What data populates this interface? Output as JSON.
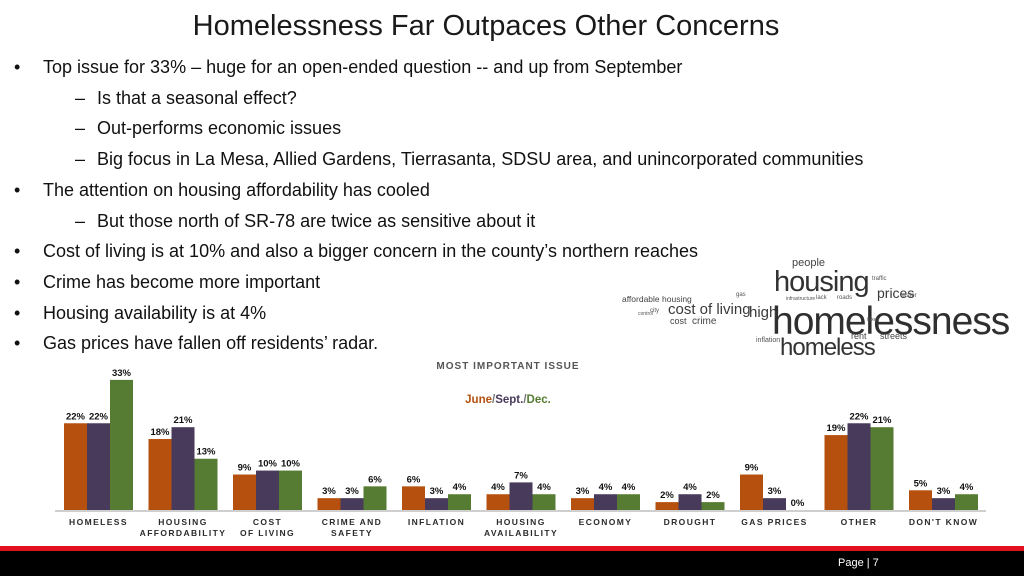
{
  "slide": {
    "title": "Homelessness Far Outpaces Other Concerns",
    "page_number": "Page | 7"
  },
  "bullets": [
    {
      "level": 1,
      "text": "Top issue for 33% – huge for an open-ended question -- and up from September"
    },
    {
      "level": 2,
      "text": "Is that a seasonal effect?"
    },
    {
      "level": 2,
      "text": "Out-performs economic issues"
    },
    {
      "level": 2,
      "text": "Big focus in La Mesa, Allied Gardens, Tierrasanta, SDSU area, and unincorporated communities"
    },
    {
      "level": 1,
      "text": "The attention on housing affordability has cooled"
    },
    {
      "level": 2,
      "text": "But those north of SR-78 are twice as sensitive about it"
    },
    {
      "level": 1,
      "text": "Cost of living is at 10% and also a bigger concern in the county’s northern reaches"
    },
    {
      "level": 1,
      "text": "Crime has become more important"
    },
    {
      "level": 1,
      "text": "Housing availability is at 4%"
    },
    {
      "level": 1,
      "text": "Gas prices have fallen off residents’ radar."
    }
  ],
  "wordcloud": {
    "words": [
      "homelessness",
      "housing",
      "homeless",
      "cost of living",
      "prices",
      "people",
      "high",
      "affordable housing",
      "crime",
      "cost",
      "rent",
      "streets",
      "inflation",
      "gas",
      "water",
      "traffic",
      "roads",
      "lack",
      "city",
      "control",
      "infrastructure",
      "taxes"
    ]
  },
  "chart_data": {
    "type": "bar",
    "title": "MOST IMPORTANT ISSUE",
    "legend_title_parts": [
      "June",
      "/",
      "Sept.",
      "/",
      "Dec."
    ],
    "categories": [
      [
        "HOMELESS"
      ],
      [
        "HOUSING",
        "AFFORDABILITY"
      ],
      [
        "COST",
        "OF LIVING"
      ],
      [
        "CRIME AND",
        "SAFETY"
      ],
      [
        "INFLATION"
      ],
      [
        "HOUSING",
        "AVAILABILITY"
      ],
      [
        "ECONOMY"
      ],
      [
        "DROUGHT"
      ],
      [
        "GAS PRICES"
      ],
      [
        "OTHER"
      ],
      [
        "DON'T KNOW"
      ]
    ],
    "series": [
      {
        "name": "June",
        "color": "#b5500e",
        "values": [
          22,
          18,
          9,
          3,
          6,
          4,
          3,
          2,
          9,
          19,
          5
        ]
      },
      {
        "name": "Sept.",
        "color": "#483a5a",
        "values": [
          22,
          21,
          10,
          3,
          3,
          7,
          4,
          4,
          3,
          22,
          3
        ]
      },
      {
        "name": "Dec.",
        "color": "#567b32",
        "values": [
          33,
          13,
          10,
          6,
          4,
          4,
          4,
          2,
          0,
          21,
          4
        ]
      }
    ],
    "value_suffix": "%",
    "ylim": [
      0,
      35
    ],
    "grid": false,
    "baseline_color": "#bfbfbf"
  }
}
